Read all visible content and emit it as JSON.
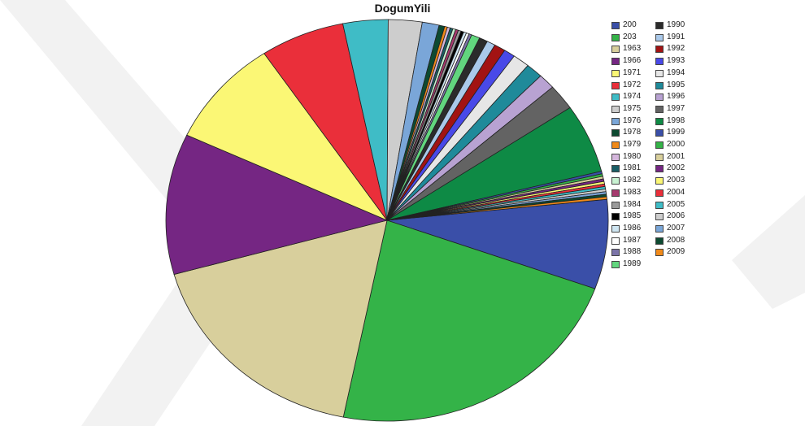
{
  "chart_data": {
    "type": "pie",
    "title": "DogumYili",
    "legend_position": "right",
    "slices": [
      {
        "label": "200",
        "value": 35,
        "color": "#3a4fa8"
      },
      {
        "label": "203",
        "value": 110,
        "color": "#34b348"
      },
      {
        "label": "1963",
        "value": 85,
        "color": "#d8cf9c"
      },
      {
        "label": "1966",
        "value": 55,
        "color": "#752683"
      },
      {
        "label": "1971",
        "value": 42,
        "color": "#fbf775"
      },
      {
        "label": "1972",
        "value": 30,
        "color": "#ea2f3a"
      },
      {
        "label": "1974",
        "value": 16,
        "color": "#3fbcc6"
      },
      {
        "label": "1975",
        "value": 12,
        "color": "#cdcdcd"
      },
      {
        "label": "1976",
        "value": 6,
        "color": "#7aa6d8"
      },
      {
        "label": "1978",
        "value": 2,
        "color": "#0d4a31"
      },
      {
        "label": "1979",
        "value": 1,
        "color": "#f08a1a"
      },
      {
        "label": "1980",
        "value": 1,
        "color": "#d4b6dc"
      },
      {
        "label": "1981",
        "value": 1,
        "color": "#1a5e65"
      },
      {
        "label": "1982",
        "value": 1,
        "color": "#c8f2d2"
      },
      {
        "label": "1983",
        "value": 1,
        "color": "#a63a6e"
      },
      {
        "label": "1984",
        "value": 1,
        "color": "#9a9a9a"
      },
      {
        "label": "1985",
        "value": 1,
        "color": "#000000"
      },
      {
        "label": "1986",
        "value": 1,
        "color": "#cfe6f2"
      },
      {
        "label": "1987",
        "value": 1,
        "color": "#ffffff"
      },
      {
        "label": "1988",
        "value": 1,
        "color": "#7b74a8"
      },
      {
        "label": "1989",
        "value": 3,
        "color": "#62d67e"
      },
      {
        "label": "1990",
        "value": 3,
        "color": "#2b2b2b"
      },
      {
        "label": "1991",
        "value": 3,
        "color": "#aac9ea"
      },
      {
        "label": "1992",
        "value": 4,
        "color": "#a21313"
      },
      {
        "label": "1993",
        "value": 4,
        "color": "#4949e8"
      },
      {
        "label": "1994",
        "value": 6,
        "color": "#e6e6e6"
      },
      {
        "label": "1995",
        "value": 6,
        "color": "#1f8a9a"
      },
      {
        "label": "1996",
        "value": 6,
        "color": "#b8a2d2"
      },
      {
        "label": "1997",
        "value": 10,
        "color": "#636363"
      },
      {
        "label": "1998",
        "value": 27,
        "color": "#0e8a45"
      },
      {
        "label": "1999",
        "value": 1,
        "color": "#3a4fa8"
      },
      {
        "label": "2000",
        "value": 1,
        "color": "#34b348"
      },
      {
        "label": "2001",
        "value": 1,
        "color": "#d8cf9c"
      },
      {
        "label": "2002",
        "value": 1,
        "color": "#752683"
      },
      {
        "label": "2003",
        "value": 1,
        "color": "#fbf775"
      },
      {
        "label": "2004",
        "value": 1,
        "color": "#ea2f3a"
      },
      {
        "label": "2005",
        "value": 1,
        "color": "#3fbcc6"
      },
      {
        "label": "2006",
        "value": 1,
        "color": "#cdcdcd"
      },
      {
        "label": "2007",
        "value": 1,
        "color": "#7aa6d8"
      },
      {
        "label": "2008",
        "value": 1,
        "color": "#0d4a31"
      },
      {
        "label": "2009",
        "value": 1,
        "color": "#f08a1a"
      }
    ]
  }
}
